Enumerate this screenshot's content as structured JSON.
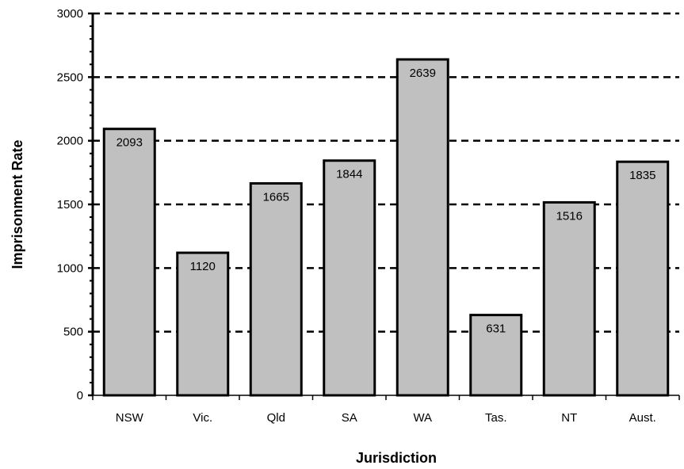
{
  "chart_data": {
    "type": "bar",
    "title": "",
    "xlabel": "Jurisdiction",
    "ylabel": "Imprisonment Rate",
    "categories": [
      "NSW",
      "Vic.",
      "Qld",
      "SA",
      "WA",
      "Tas.",
      "NT",
      "Aust."
    ],
    "values": [
      2093,
      1120,
      1665,
      1844,
      2639,
      631,
      1516,
      1835
    ],
    "data_labels": [
      "2093",
      "1120",
      "1665",
      "1844",
      "2639",
      "631",
      "1516",
      "1835"
    ],
    "ylim": [
      0,
      3000
    ],
    "yticks": [
      0,
      500,
      1000,
      1500,
      2000,
      2500,
      3000
    ],
    "ytick_labels": [
      "0",
      "500",
      "1000",
      "1500",
      "2000",
      "2500",
      "3000"
    ],
    "grid": "dashed horizontal",
    "bar_color": "#c0c0c0",
    "bar_edge_color": "#000000"
  }
}
